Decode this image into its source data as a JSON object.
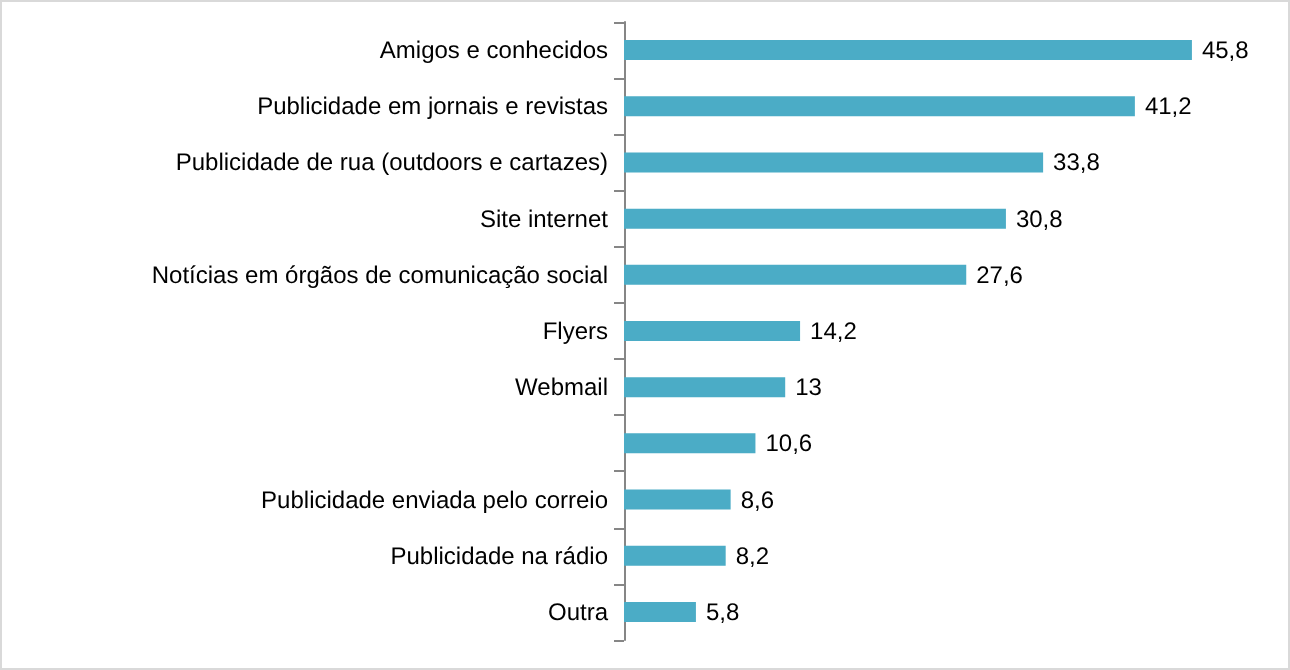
{
  "chart_data": {
    "type": "bar",
    "orientation": "horizontal",
    "categories": [
      "Amigos e conhecidos",
      "Publicidade em jornais e revistas",
      "Publicidade de rua (outdoors e cartazes)",
      "Site internet",
      "Notícias em órgãos de comunicação social",
      "Flyers",
      "Webmail",
      null,
      "Publicidade enviada pelo correio",
      "Publicidade na rádio",
      "Outra"
    ],
    "values": [
      45.8,
      41.2,
      33.8,
      30.8,
      27.6,
      14.2,
      13,
      10.6,
      8.6,
      8.2,
      5.8
    ],
    "value_labels": [
      "45,8",
      "41,2",
      "33,8",
      "30,8",
      "27,6",
      "14,2",
      "13",
      "10,6",
      "8,6",
      "8,2",
      "5,8"
    ],
    "color": "#4bacc6"
  }
}
